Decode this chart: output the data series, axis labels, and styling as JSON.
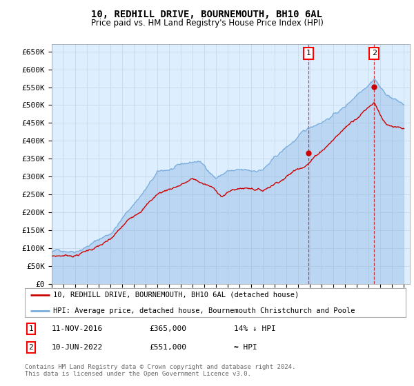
{
  "title": "10, REDHILL DRIVE, BOURNEMOUTH, BH10 6AL",
  "subtitle": "Price paid vs. HM Land Registry's House Price Index (HPI)",
  "ylim": [
    0,
    670000
  ],
  "yticks": [
    0,
    50000,
    100000,
    150000,
    200000,
    250000,
    300000,
    350000,
    400000,
    450000,
    500000,
    550000,
    600000,
    650000
  ],
  "sale1_year": 2016.875,
  "sale1_price": 365000,
  "sale1_label": "1",
  "sale1_date_str": "11-NOV-2016",
  "sale1_hpi_rel": "14% ↓ HPI",
  "sale2_year": 2022.458,
  "sale2_price": 551000,
  "sale2_label": "2",
  "sale2_date_str": "10-JUN-2022",
  "sale2_hpi_rel": "≈ HPI",
  "line_color_price": "#cc0000",
  "line_color_hpi": "#7aacdc",
  "plot_bg_color": "#ddeeff",
  "legend_label1": "10, REDHILL DRIVE, BOURNEMOUTH, BH10 6AL (detached house)",
  "legend_label2": "HPI: Average price, detached house, Bournemouth Christchurch and Poole",
  "footer": "Contains HM Land Registry data © Crown copyright and database right 2024.\nThis data is licensed under the Open Government Licence v3.0.",
  "background_color": "#ffffff",
  "grid_color": "#c8d8e8",
  "start_year": 1995,
  "end_year": 2025
}
